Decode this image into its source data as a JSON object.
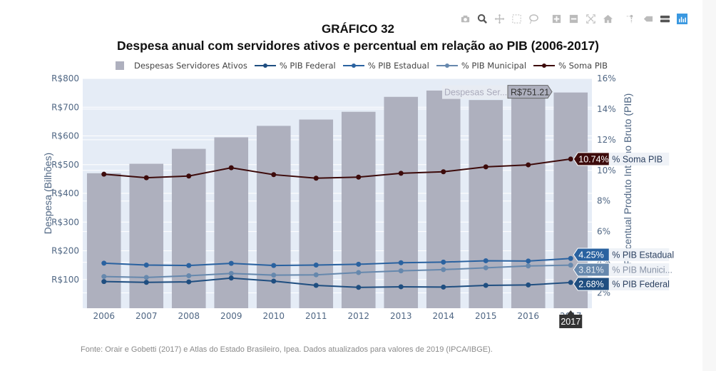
{
  "title": "GRÁFICO 32",
  "subtitle": "Despesa anual com servidores ativos e percentual em relação ao PIB (2006-2017)",
  "modebar": [
    "camera-icon",
    "zoom-icon",
    "pan-icon",
    "box-select-icon",
    "lasso-select-icon",
    "zoom-in-icon",
    "zoom-out-icon",
    "autoscale-icon",
    "home-icon",
    "spike-lines-icon",
    "hover-closest-icon",
    "hover-compare-icon",
    "plotly-logo-icon"
  ],
  "footnote": "Fonte: Orair e Gobetti (2017) e Atlas do Estado Brasileiro, Ipea. Dados atualizados para valores de 2019 (IPCA/IBGE).",
  "colors": {
    "plot_bg": "#e5ecf6",
    "bar": "#aeb0be",
    "federal": "#1f4e80",
    "estadual": "#2a62a0",
    "municipal": "#6688ad",
    "soma": "#3d0b0b",
    "axis_text": "#506784"
  },
  "hover": {
    "bar_label_name": "Despesas Ser...",
    "bar_label_value": "R$751.21",
    "x_label": "2017",
    "soma": {
      "value": "10.74%",
      "name": "% Soma PIB"
    },
    "estadual": {
      "value": "4.25%",
      "name": "% PIB Estadual"
    },
    "municipal": {
      "value": "3.81%",
      "name": "% PIB Munici..."
    },
    "federal": {
      "value": "2.68%",
      "name": "% PIB Federal"
    }
  },
  "chart_data": {
    "type": "bar",
    "title": "GRÁFICO 32",
    "subtitle": "Despesa anual com servidores ativos e percentual em relação ao PIB (2006-2017)",
    "categories": [
      "2006",
      "2007",
      "2008",
      "2009",
      "2010",
      "2011",
      "2012",
      "2013",
      "2014",
      "2015",
      "2016",
      "2017"
    ],
    "ylabel": "Despesa (Bilhões)",
    "ylim": [
      0,
      800
    ],
    "yticks": [
      100,
      200,
      300,
      400,
      500,
      600,
      700,
      800
    ],
    "ytick_labels": [
      "R$100",
      "R$200",
      "R$300",
      "R$400",
      "R$500",
      "R$600",
      "R$700",
      "R$800"
    ],
    "y2label": "Percentual Produto Interno Bruto (PIB)",
    "y2lim": [
      1,
      16
    ],
    "y2ticks": [
      2,
      4,
      6,
      8,
      10,
      12,
      14,
      16
    ],
    "y2tick_labels": [
      "2%",
      "4%",
      "6%",
      "8%",
      "10%",
      "12%",
      "14%",
      "16%"
    ],
    "legend_position": "top",
    "grid": true,
    "series": [
      {
        "name": "Despesas Servidores Ativos",
        "type": "bar",
        "axis": "y",
        "values": [
          470,
          503,
          555,
          595,
          635,
          657,
          684,
          736,
          758,
          725,
          759,
          751.21
        ]
      },
      {
        "name": "% PIB Federal",
        "type": "line",
        "axis": "y2",
        "values": [
          2.74,
          2.69,
          2.72,
          2.97,
          2.77,
          2.49,
          2.36,
          2.4,
          2.38,
          2.49,
          2.52,
          2.68
        ]
      },
      {
        "name": "% PIB Estadual",
        "type": "line",
        "axis": "y2",
        "values": [
          3.94,
          3.82,
          3.79,
          3.93,
          3.79,
          3.82,
          3.87,
          3.97,
          4.01,
          4.1,
          4.08,
          4.25
        ]
      },
      {
        "name": "% PIB Municipal",
        "type": "line",
        "axis": "y2",
        "values": [
          3.07,
          3.01,
          3.12,
          3.27,
          3.16,
          3.18,
          3.33,
          3.44,
          3.52,
          3.64,
          3.76,
          3.81
        ]
      },
      {
        "name": "% Soma PIB",
        "type": "line",
        "axis": "y2",
        "values": [
          9.75,
          9.52,
          9.63,
          10.17,
          9.72,
          9.49,
          9.56,
          9.81,
          9.91,
          10.23,
          10.36,
          10.74
        ]
      }
    ]
  }
}
